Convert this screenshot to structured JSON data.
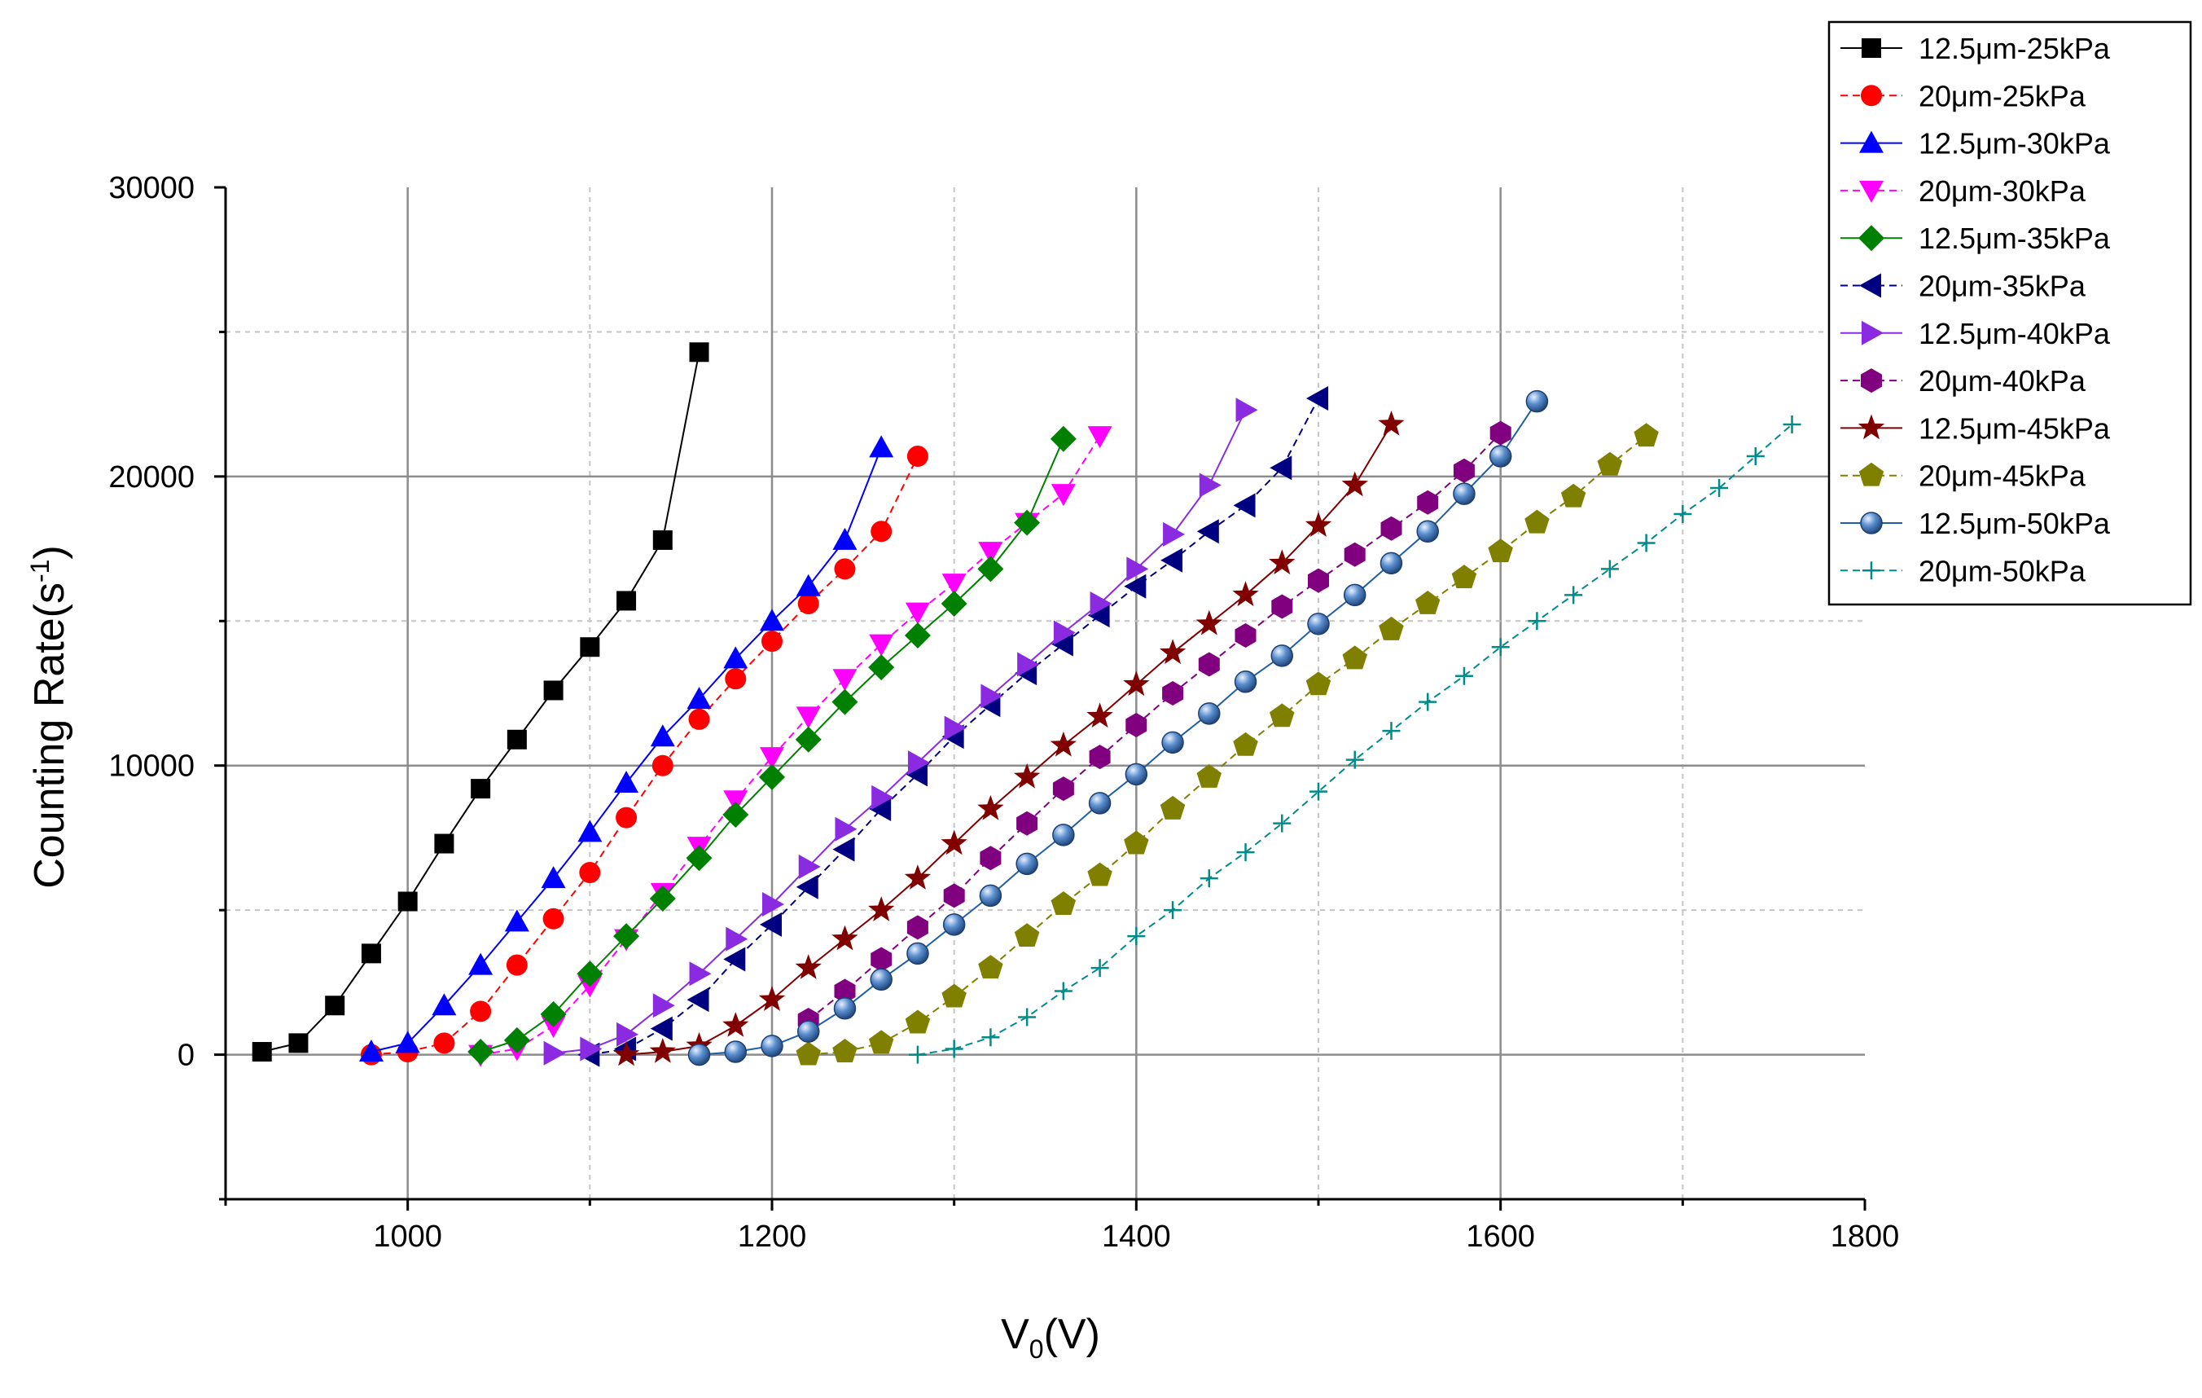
{
  "chart_data": {
    "type": "line",
    "title": "",
    "xlabel": {
      "main": "V",
      "sub": "0",
      "suffix": "(V)"
    },
    "ylabel": {
      "main": "Counting Rate(s",
      "sup": "-1",
      "suffix": ")"
    },
    "xlim": [
      900,
      1800
    ],
    "ylim": [
      -5000,
      30000
    ],
    "xticks": [
      1000,
      1200,
      1400,
      1600,
      1800
    ],
    "yticks": [
      0,
      10000,
      20000,
      30000
    ],
    "x_tick_labels": [
      "1000",
      "1200",
      "1400",
      "1600",
      "1800"
    ],
    "y_tick_labels": [
      "0",
      "10000",
      "20000",
      "30000"
    ],
    "grid": true,
    "legend_position": "top-right",
    "series": [
      {
        "name": "12.5μm-25kPa",
        "color": "#000000",
        "dash": "solid",
        "marker": "square",
        "x": [
          920,
          940,
          960,
          980,
          1000,
          1020,
          1040,
          1060,
          1080,
          1100,
          1120,
          1140,
          1160
        ],
        "y": [
          100,
          400,
          1700,
          3500,
          5300,
          7300,
          9200,
          10900,
          12600,
          14100,
          15700,
          17800,
          24300
        ]
      },
      {
        "name": "20μm-25kPa",
        "color": "#ff0000",
        "dash": "dashed",
        "marker": "circle",
        "x": [
          980,
          1000,
          1020,
          1040,
          1060,
          1080,
          1100,
          1120,
          1140,
          1160,
          1180,
          1200,
          1220,
          1240,
          1260,
          1280
        ],
        "y": [
          0,
          100,
          400,
          1500,
          3100,
          4700,
          6300,
          8200,
          10000,
          11600,
          13000,
          14300,
          15600,
          16800,
          18100,
          20700
        ]
      },
      {
        "name": "12.5μm-30kPa",
        "color": "#0000ff",
        "dash": "solid",
        "marker": "triangle-up",
        "x": [
          980,
          1000,
          1020,
          1040,
          1060,
          1080,
          1100,
          1120,
          1140,
          1160,
          1180,
          1200,
          1220,
          1240,
          1260
        ],
        "y": [
          100,
          400,
          1700,
          3100,
          4600,
          6100,
          7700,
          9400,
          11000,
          12300,
          13700,
          15000,
          16200,
          17800,
          21000
        ]
      },
      {
        "name": "20μm-30kPa",
        "color": "#ff00ff",
        "dash": "dashed",
        "marker": "triangle-down",
        "x": [
          1040,
          1060,
          1080,
          1100,
          1120,
          1140,
          1160,
          1180,
          1200,
          1220,
          1240,
          1260,
          1280,
          1300,
          1320,
          1340,
          1360,
          1380
        ],
        "y": [
          0,
          200,
          1000,
          2400,
          4000,
          5600,
          7200,
          8800,
          10300,
          11700,
          13000,
          14200,
          15300,
          16300,
          17400,
          18400,
          19400,
          21400
        ]
      },
      {
        "name": "12.5μm-35kPa",
        "color": "#008000",
        "dash": "solid",
        "marker": "diamond",
        "x": [
          1040,
          1060,
          1080,
          1100,
          1120,
          1140,
          1160,
          1180,
          1200,
          1220,
          1240,
          1260,
          1280,
          1300,
          1320,
          1340,
          1360
        ],
        "y": [
          100,
          500,
          1400,
          2800,
          4100,
          5400,
          6800,
          8300,
          9600,
          10900,
          12200,
          13400,
          14500,
          15600,
          16800,
          18400,
          21300
        ]
      },
      {
        "name": "20μm-35kPa",
        "color": "#000080",
        "dash": "dashed",
        "marker": "triangle-left",
        "x": [
          1100,
          1120,
          1140,
          1160,
          1180,
          1200,
          1220,
          1240,
          1260,
          1280,
          1300,
          1320,
          1340,
          1360,
          1380,
          1400,
          1420,
          1440,
          1460,
          1480,
          1500
        ],
        "y": [
          0,
          200,
          900,
          1900,
          3300,
          4500,
          5800,
          7100,
          8500,
          9700,
          11000,
          12100,
          13200,
          14200,
          15200,
          16200,
          17100,
          18100,
          19000,
          20300,
          22700
        ]
      },
      {
        "name": "12.5μm-40kPa",
        "color": "#8a2be2",
        "dash": "solid",
        "marker": "triangle-right",
        "x": [
          1080,
          1100,
          1120,
          1140,
          1160,
          1180,
          1200,
          1220,
          1240,
          1260,
          1280,
          1300,
          1320,
          1340,
          1360,
          1380,
          1400,
          1420,
          1440,
          1460
        ],
        "y": [
          50,
          200,
          700,
          1700,
          2800,
          4000,
          5200,
          6500,
          7800,
          8900,
          10100,
          11300,
          12400,
          13500,
          14600,
          15600,
          16800,
          18000,
          19700,
          22300
        ]
      },
      {
        "name": "20μm-40kPa",
        "color": "#800080",
        "dash": "dashed",
        "marker": "hexagon",
        "x": [
          1220,
          1240,
          1260,
          1280,
          1300,
          1320,
          1340,
          1360,
          1380,
          1400,
          1420,
          1440,
          1460,
          1480,
          1500,
          1520,
          1540,
          1560,
          1580,
          1600
        ],
        "y": [
          1200,
          2200,
          3300,
          4400,
          5500,
          6800,
          8000,
          9200,
          10300,
          11400,
          12500,
          13500,
          14500,
          15500,
          16400,
          17300,
          18200,
          19100,
          20200,
          21500
        ]
      },
      {
        "name": "12.5μm-45kPa",
        "color": "#800000",
        "dash": "solid",
        "marker": "star",
        "x": [
          1120,
          1140,
          1160,
          1180,
          1200,
          1220,
          1240,
          1260,
          1280,
          1300,
          1320,
          1340,
          1360,
          1380,
          1400,
          1420,
          1440,
          1460,
          1480,
          1500,
          1520,
          1540
        ],
        "y": [
          0,
          100,
          300,
          1000,
          1900,
          3000,
          4000,
          5000,
          6100,
          7300,
          8500,
          9600,
          10700,
          11700,
          12800,
          13900,
          14900,
          15900,
          17000,
          18300,
          19700,
          21800
        ]
      },
      {
        "name": "20μm-45kPa",
        "color": "#808000",
        "dash": "dashed",
        "marker": "pentagon",
        "x": [
          1220,
          1240,
          1260,
          1280,
          1300,
          1320,
          1340,
          1360,
          1380,
          1400,
          1420,
          1440,
          1460,
          1480,
          1500,
          1520,
          1540,
          1560,
          1580,
          1600,
          1620,
          1640,
          1660,
          1680
        ],
        "y": [
          0,
          100,
          400,
          1100,
          2000,
          3000,
          4100,
          5200,
          6200,
          7300,
          8500,
          9600,
          10700,
          11700,
          12800,
          13700,
          14700,
          15600,
          16500,
          17400,
          18400,
          19300,
          20400,
          21400
        ]
      },
      {
        "name": "12.5μm-50kPa",
        "color": "#1f5fa8",
        "dash": "solid",
        "marker": "sphere",
        "x": [
          1160,
          1180,
          1200,
          1220,
          1240,
          1260,
          1280,
          1300,
          1320,
          1340,
          1360,
          1380,
          1400,
          1420,
          1440,
          1460,
          1480,
          1500,
          1520,
          1540,
          1560,
          1580,
          1600,
          1620
        ],
        "y": [
          0,
          100,
          300,
          800,
          1600,
          2600,
          3500,
          4500,
          5500,
          6600,
          7600,
          8700,
          9700,
          10800,
          11800,
          12900,
          13800,
          14900,
          15900,
          17000,
          18100,
          19400,
          20700,
          22600
        ]
      },
      {
        "name": "20μm-50kPa",
        "color": "#008b8b",
        "dash": "dashed",
        "marker": "plus",
        "x": [
          1280,
          1300,
          1320,
          1340,
          1360,
          1380,
          1400,
          1420,
          1440,
          1460,
          1480,
          1500,
          1520,
          1540,
          1560,
          1580,
          1600,
          1620,
          1640,
          1660,
          1680,
          1700,
          1720,
          1740,
          1760
        ],
        "y": [
          0,
          200,
          600,
          1300,
          2200,
          3000,
          4100,
          5000,
          6100,
          7000,
          8000,
          9100,
          10200,
          11200,
          12200,
          13100,
          14100,
          15000,
          15900,
          16800,
          17700,
          18700,
          19600,
          20700,
          21800
        ]
      }
    ]
  }
}
